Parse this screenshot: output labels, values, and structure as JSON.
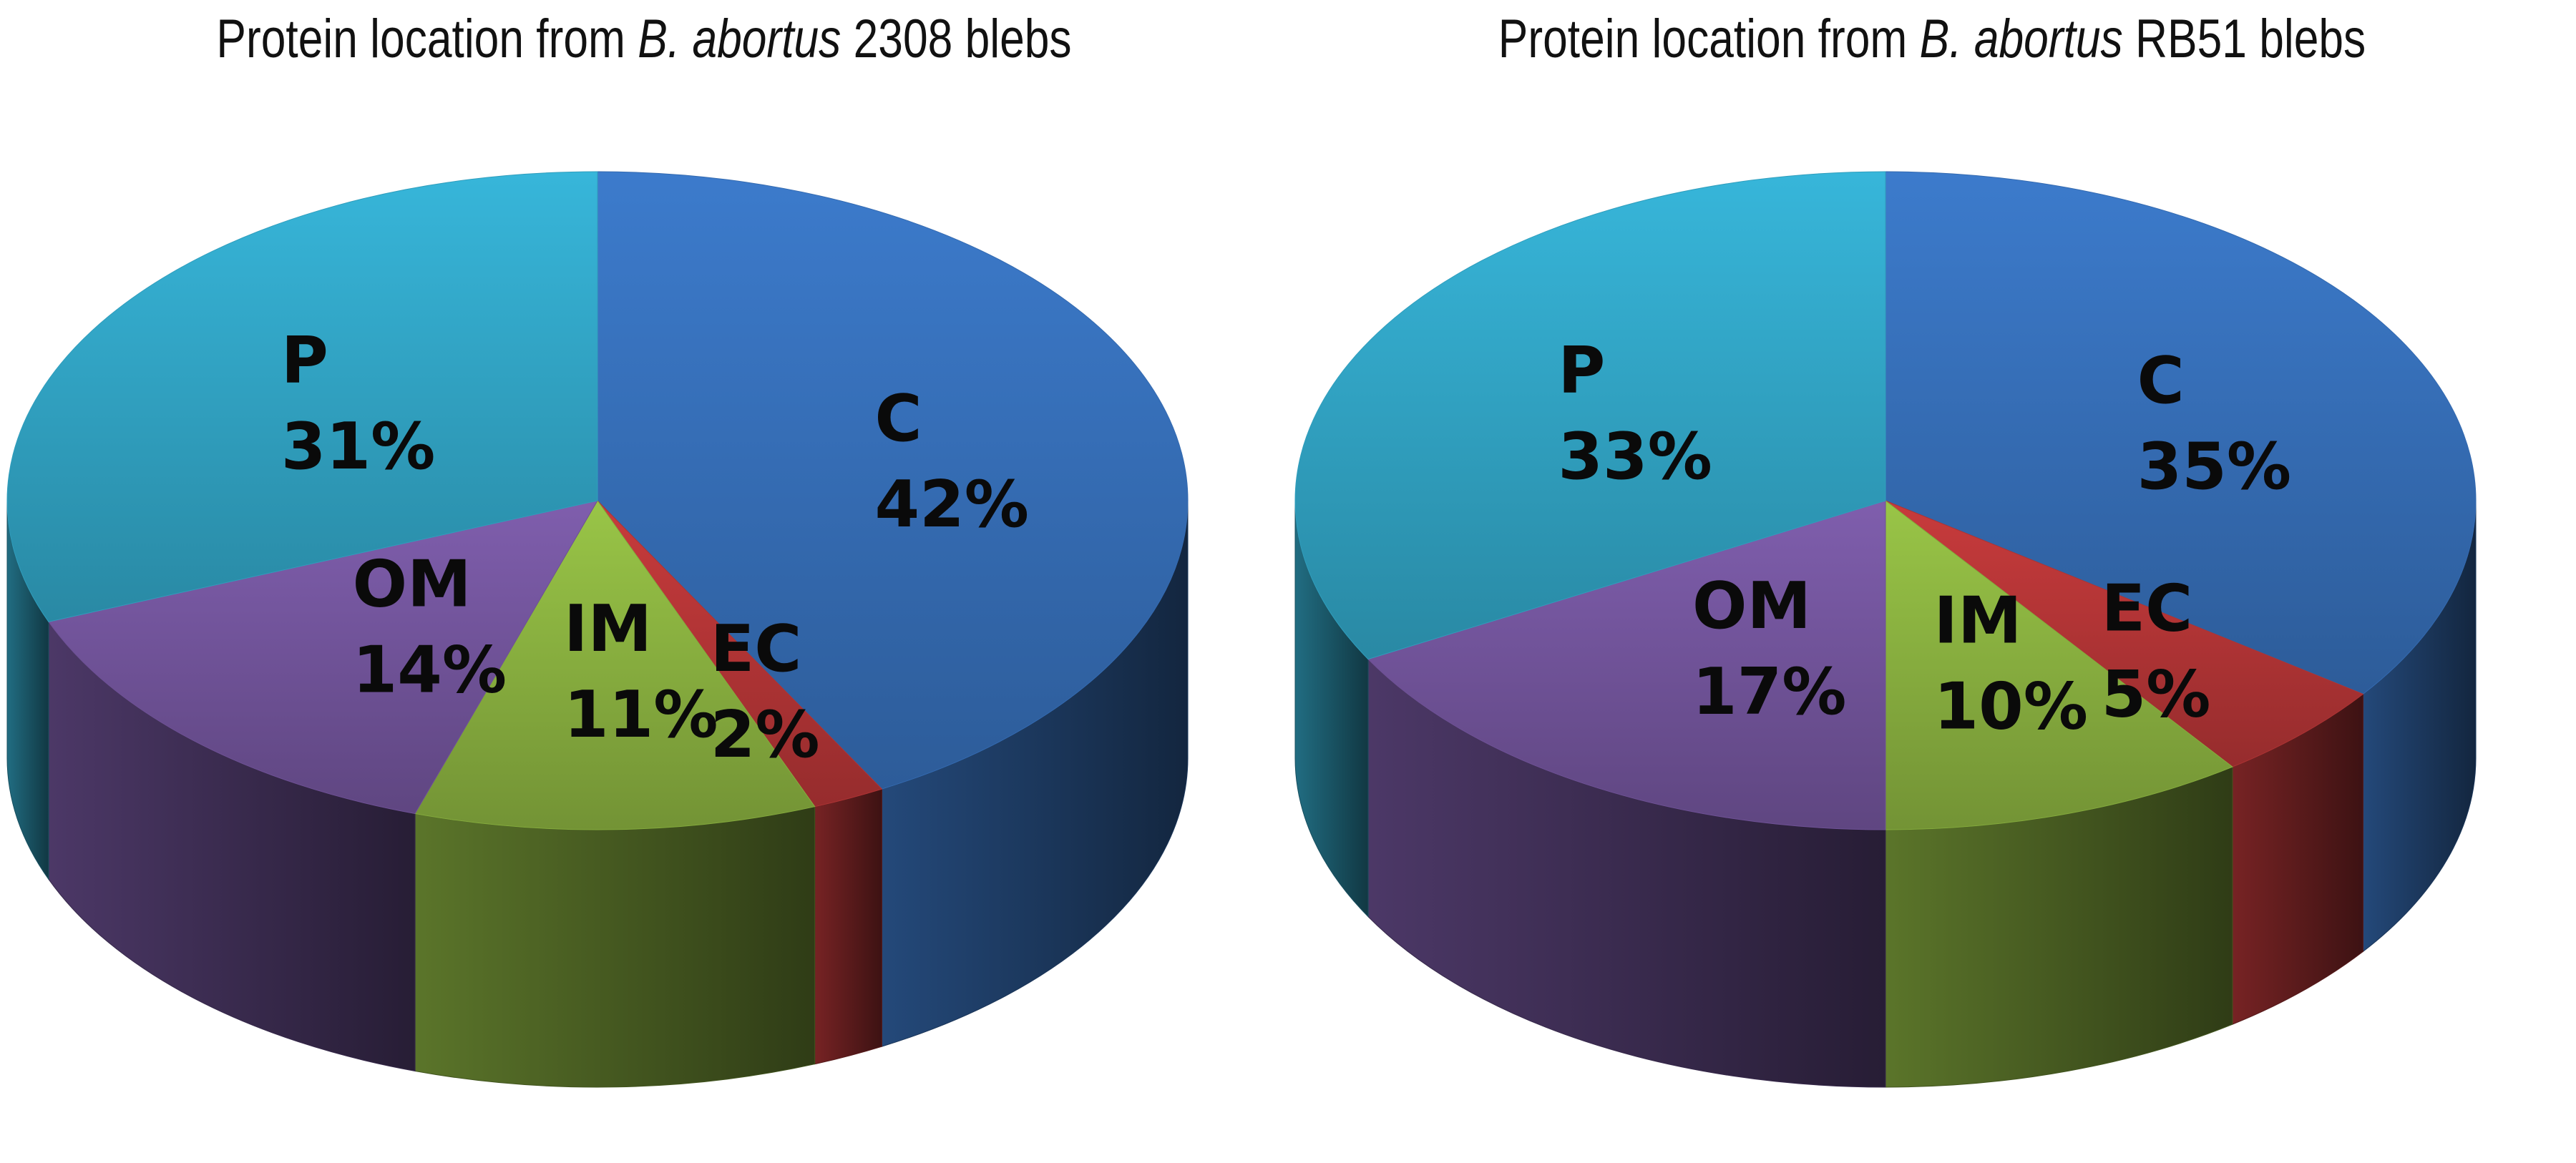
{
  "chart_data": [
    {
      "type": "pie",
      "title_prefix": "Protein location from ",
      "title_italic": "B. abortus",
      "title_suffix": " 2308 blebs",
      "slices": [
        {
          "label": "C",
          "value": 42,
          "display": "42%",
          "color": "#3a76c4"
        },
        {
          "label": "EC",
          "value": 2,
          "display": "2%",
          "color": "#c0393a"
        },
        {
          "label": "IM",
          "value": 11,
          "display": "11%",
          "color": "#93bd44"
        },
        {
          "label": "OM",
          "value": 14,
          "display": "14%",
          "color": "#7a5aa6"
        },
        {
          "label": "P",
          "value": 31,
          "display": "31%",
          "color": "#35afd2"
        }
      ]
    },
    {
      "type": "pie",
      "title_prefix": "Protein location from ",
      "title_italic": "B. abortus",
      "title_suffix": " RB51 blebs",
      "slices": [
        {
          "label": "C",
          "value": 35,
          "display": "35%",
          "color": "#3a76c4"
        },
        {
          "label": "EC",
          "value": 5,
          "display": "5%",
          "color": "#c0393a"
        },
        {
          "label": "IM",
          "value": 10,
          "display": "10%",
          "color": "#93bd44"
        },
        {
          "label": "OM",
          "value": 17,
          "display": "17%",
          "color": "#7a5aa6"
        },
        {
          "label": "P",
          "value": 33,
          "display": "33%",
          "color": "#35afd2"
        }
      ]
    }
  ]
}
